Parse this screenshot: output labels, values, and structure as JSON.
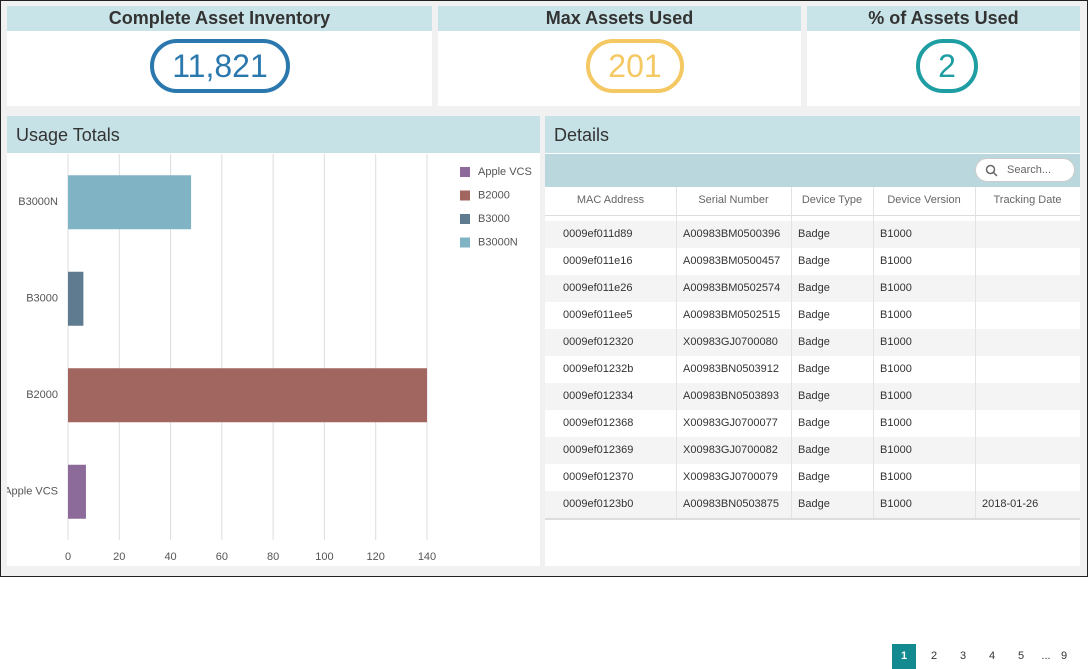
{
  "kpis": [
    {
      "title": "Complete Asset Inventory",
      "value": "11,821",
      "color": "#2a78ad"
    },
    {
      "title": "Max Assets Used",
      "value": "201",
      "color": "#f4c862"
    },
    {
      "title": "% of Assets Used",
      "value": "2",
      "color": "#1e9ea3"
    }
  ],
  "chart_data": {
    "type": "hbar",
    "title": "Usage Totals",
    "categories": [
      "Apple VCS",
      "B2000",
      "B3000",
      "B3000N"
    ],
    "values": [
      7,
      140,
      6,
      48
    ],
    "colors": [
      "#8c6a99",
      "#a0665f",
      "#5f7b8f",
      "#80b4c5"
    ],
    "xlim": [
      0,
      145
    ],
    "xticks": [
      0,
      20,
      40,
      60,
      80,
      100,
      120,
      140
    ],
    "grid": true
  },
  "details": {
    "title": "Details",
    "search_placeholder": "Search...",
    "columns": [
      "MAC Address",
      "Serial Number",
      "Device Type",
      "Device Version",
      "Tracking Date"
    ],
    "rows": [
      [
        "0009ef011d89",
        "A00983BM0500396",
        "Badge",
        "B1000",
        null
      ],
      [
        "0009ef011e16",
        "A00983BM0500457",
        "Badge",
        "B1000",
        null
      ],
      [
        "0009ef011e26",
        "A00983BM0502574",
        "Badge",
        "B1000",
        null
      ],
      [
        "0009ef011ee5",
        "A00983BM0502515",
        "Badge",
        "B1000",
        null
      ],
      [
        "0009ef012320",
        "X00983GJ0700080",
        "Badge",
        "B1000",
        null
      ],
      [
        "0009ef01232b",
        "A00983BN0503912",
        "Badge",
        "B1000",
        null
      ],
      [
        "0009ef012334",
        "A00983BN0503893",
        "Badge",
        "B1000",
        null
      ],
      [
        "0009ef012368",
        "X00983GJ0700077",
        "Badge",
        "B1000",
        null
      ],
      [
        "0009ef012369",
        "X00983GJ0700082",
        "Badge",
        "B1000",
        null
      ],
      [
        "0009ef012370",
        "X00983GJ0700079",
        "Badge",
        "B1000",
        null
      ],
      [
        "0009ef0123b0",
        "A00983BN0503875",
        "Badge",
        "B1000",
        "2018-01-26"
      ]
    ],
    "pages": [
      "1",
      "2",
      "3",
      "4",
      "5",
      "...",
      "9"
    ]
  }
}
